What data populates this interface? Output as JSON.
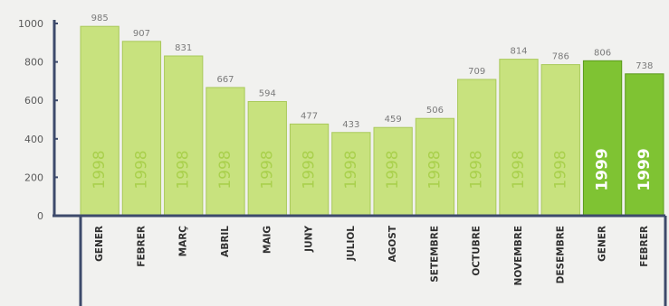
{
  "chart_data": {
    "type": "bar",
    "categories": [
      "GENER",
      "FEBRER",
      "MARÇ",
      "ABRIL",
      "MAIG",
      "JUNY",
      "JULIOL",
      "AGOST",
      "SETEMBRE",
      "OCTUBRE",
      "NOVEMBRE",
      "DESEMBRE",
      "GENER",
      "FEBRER"
    ],
    "values": [
      985,
      907,
      831,
      667,
      594,
      477,
      433,
      459,
      506,
      709,
      814,
      786,
      806,
      738
    ],
    "years": [
      "1998",
      "1998",
      "1998",
      "1998",
      "1998",
      "1998",
      "1998",
      "1998",
      "1998",
      "1998",
      "1998",
      "1998",
      "1999",
      "1999"
    ],
    "y_ticks": [
      0,
      200,
      400,
      600,
      800,
      1000
    ],
    "ylim": [
      0,
      1000
    ],
    "title": "",
    "xlabel": "",
    "ylabel": "",
    "grid": false,
    "colors": {
      "bar_1998": "#c8e27e",
      "bar_1998_edge": "#a9c95a",
      "year_text_1998": "#a9d04c",
      "bar_1999": "#7fc333",
      "bar_1999_edge": "#5a9a1c",
      "year_text_1999": "#ffffff",
      "axis": "#3d4a6b",
      "background": "#f1f1ef"
    }
  }
}
